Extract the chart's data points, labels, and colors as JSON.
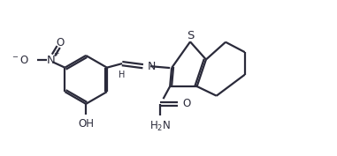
{
  "bg_color": "#ffffff",
  "line_color": "#2a2a3a",
  "line_width": 1.6,
  "font_size": 8.5,
  "figsize": [
    3.81,
    1.77
  ],
  "dpi": 100,
  "xlim": [
    0,
    10
  ],
  "ylim": [
    0,
    4.6
  ]
}
